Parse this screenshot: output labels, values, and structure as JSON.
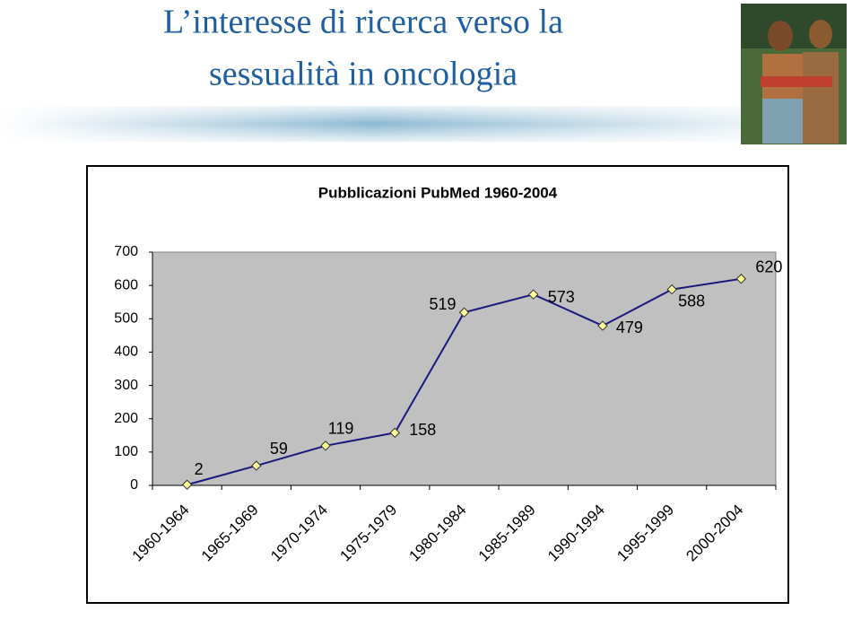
{
  "slide": {
    "title": [
      "L’interesse di ricerca verso la",
      "sessualità in oncologia"
    ]
  },
  "chart_data": {
    "type": "line",
    "title": "Pubblicazioni PubMed 1960-2004",
    "categories": [
      "1960-1964",
      "1965-1969",
      "1970-1974",
      "1975-1979",
      "1980-1984",
      "1985-1989",
      "1990-1994",
      "1995-1999",
      "2000-2004"
    ],
    "values": [
      2,
      59,
      119,
      158,
      519,
      573,
      479,
      588,
      620
    ],
    "color": "#1a1a80",
    "marker_color": "#ffff99",
    "ylim": [
      0,
      700
    ],
    "yticks": [
      0,
      100,
      200,
      300,
      400,
      500,
      600,
      700
    ],
    "grid": false
  }
}
